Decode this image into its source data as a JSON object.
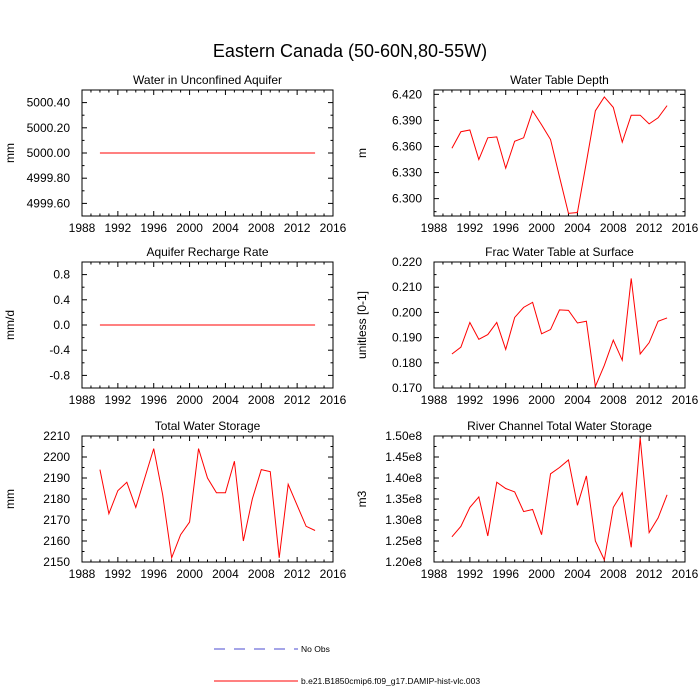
{
  "figure": {
    "title": "Eastern Canada (50-60N,80-55W)"
  },
  "legend": {
    "obs_label": "No Obs",
    "obs_color": "#4b4bd0",
    "model_label": "b.e21.B1850cmip6.f09_g17.DAMIP-hist-vlc.003",
    "model_color": "#ff0000"
  },
  "chart_data": [
    {
      "type": "line",
      "title": "Water in Unconfined Aquifer",
      "ylabel": "mm",
      "xlim": [
        1988,
        2016
      ],
      "ylim": [
        4999.5,
        5000.5
      ],
      "xticks": [
        1988,
        1992,
        1996,
        2000,
        2004,
        2008,
        2012,
        2016
      ],
      "yticks": [
        4999.6,
        4999.8,
        5000.0,
        5000.2,
        5000.4
      ],
      "ytick_labels": [
        "4999.60",
        "4999.80",
        "5000.00",
        "5000.20",
        "5000.40"
      ],
      "series": [
        {
          "color": "#ff0000",
          "x": [
            1990,
            1991,
            1992,
            1993,
            1994,
            1995,
            1996,
            1997,
            1998,
            1999,
            2000,
            2001,
            2002,
            2003,
            2004,
            2005,
            2006,
            2007,
            2008,
            2009,
            2010,
            2011,
            2012,
            2013,
            2014
          ],
          "y": [
            5000,
            5000,
            5000,
            5000,
            5000,
            5000,
            5000,
            5000,
            5000,
            5000,
            5000,
            5000,
            5000,
            5000,
            5000,
            5000,
            5000,
            5000,
            5000,
            5000,
            5000,
            5000,
            5000,
            5000,
            5000
          ]
        }
      ]
    },
    {
      "type": "line",
      "title": "Water Table Depth",
      "ylabel": "m",
      "xlim": [
        1988,
        2016
      ],
      "ylim": [
        6.28,
        6.425
      ],
      "xticks": [
        1988,
        1992,
        1996,
        2000,
        2004,
        2008,
        2012,
        2016
      ],
      "yticks": [
        6.3,
        6.33,
        6.36,
        6.39,
        6.42
      ],
      "ytick_labels": [
        "6.300",
        "6.330",
        "6.360",
        "6.390",
        "6.420"
      ],
      "series": [
        {
          "color": "#ff0000",
          "x": [
            1990,
            1991,
            1992,
            1993,
            1994,
            1995,
            1996,
            1997,
            1998,
            1999,
            2000,
            2001,
            2002,
            2003,
            2004,
            2005,
            2006,
            2007,
            2008,
            2009,
            2010,
            2011,
            2012,
            2013,
            2014
          ],
          "y": [
            6.358,
            6.377,
            6.379,
            6.345,
            6.37,
            6.371,
            6.335,
            6.366,
            6.37,
            6.401,
            6.385,
            6.368,
            6.325,
            6.283,
            6.284,
            6.342,
            6.401,
            6.417,
            6.405,
            6.365,
            6.396,
            6.396,
            6.386,
            6.393,
            6.407
          ]
        }
      ]
    },
    {
      "type": "line",
      "title": "Aquifer Recharge Rate",
      "ylabel": "mm/d",
      "xlim": [
        1988,
        2016
      ],
      "ylim": [
        -1.0,
        1.0
      ],
      "xticks": [
        1988,
        1992,
        1996,
        2000,
        2004,
        2008,
        2012,
        2016
      ],
      "yticks": [
        -0.8,
        -0.4,
        0.0,
        0.4,
        0.8
      ],
      "ytick_labels": [
        "-0.8",
        "-0.4",
        "0.0",
        "0.4",
        "0.8"
      ],
      "series": [
        {
          "color": "#ff0000",
          "x": [
            1990,
            1991,
            1992,
            1993,
            1994,
            1995,
            1996,
            1997,
            1998,
            1999,
            2000,
            2001,
            2002,
            2003,
            2004,
            2005,
            2006,
            2007,
            2008,
            2009,
            2010,
            2011,
            2012,
            2013,
            2014
          ],
          "y": [
            0,
            0,
            0,
            0,
            0,
            0,
            0,
            0,
            0,
            0,
            0,
            0,
            0,
            0,
            0,
            0,
            0,
            0,
            0,
            0,
            0,
            0,
            0,
            0,
            0
          ]
        }
      ]
    },
    {
      "type": "line",
      "title": "Frac Water Table at Surface",
      "ylabel": "unitless [0-1]",
      "xlim": [
        1988,
        2016
      ],
      "ylim": [
        0.17,
        0.22
      ],
      "xticks": [
        1988,
        1992,
        1996,
        2000,
        2004,
        2008,
        2012,
        2016
      ],
      "yticks": [
        0.17,
        0.18,
        0.19,
        0.2,
        0.21,
        0.22
      ],
      "ytick_labels": [
        "0.170",
        "0.180",
        "0.190",
        "0.200",
        "0.210",
        "0.220"
      ],
      "series": [
        {
          "color": "#ff0000",
          "x": [
            1990,
            1991,
            1992,
            1993,
            1994,
            1995,
            1996,
            1997,
            1998,
            1999,
            2000,
            2001,
            2002,
            2003,
            2004,
            2005,
            2006,
            2007,
            2008,
            2009,
            2010,
            2011,
            2012,
            2013,
            2014
          ],
          "y": [
            0.1835,
            0.1862,
            0.196,
            0.1893,
            0.1912,
            0.196,
            0.1853,
            0.198,
            0.202,
            0.204,
            0.1915,
            0.1932,
            0.201,
            0.2008,
            0.1958,
            0.1965,
            0.1706,
            0.179,
            0.189,
            0.181,
            0.2135,
            0.1835,
            0.188,
            0.1965,
            0.1978
          ]
        }
      ]
    },
    {
      "type": "line",
      "title": "Total Water Storage",
      "ylabel": "mm",
      "xlim": [
        1988,
        2016
      ],
      "ylim": [
        2150,
        2210
      ],
      "xticks": [
        1988,
        1992,
        1996,
        2000,
        2004,
        2008,
        2012,
        2016
      ],
      "yticks": [
        2150,
        2160,
        2170,
        2180,
        2190,
        2200,
        2210
      ],
      "ytick_labels": [
        "2150",
        "2160",
        "2170",
        "2180",
        "2190",
        "2200",
        "2210"
      ],
      "series": [
        {
          "color": "#ff0000",
          "x": [
            1990,
            1991,
            1992,
            1993,
            1994,
            1995,
            1996,
            1997,
            1998,
            1999,
            2000,
            2001,
            2002,
            2003,
            2004,
            2005,
            2006,
            2007,
            2008,
            2009,
            2010,
            2011,
            2012,
            2013,
            2014
          ],
          "y": [
            2194,
            2173,
            2184,
            2188,
            2176,
            2190,
            2204,
            2182,
            2152,
            2163,
            2169,
            2204,
            2190,
            2183,
            2183,
            2198,
            2160,
            2180,
            2194,
            2193,
            2152,
            2187,
            2177,
            2167,
            2165
          ]
        }
      ]
    },
    {
      "type": "line",
      "title": "River Channel Total Water Storage",
      "ylabel": "m3",
      "xlim": [
        1988,
        2016
      ],
      "ylim": [
        120000000.0,
        150000000.0
      ],
      "xticks": [
        1988,
        1992,
        1996,
        2000,
        2004,
        2008,
        2012,
        2016
      ],
      "yticks": [
        120000000.0,
        125000000.0,
        130000000.0,
        135000000.0,
        140000000.0,
        145000000.0,
        150000000.0
      ],
      "ytick_labels": [
        "1.20e8",
        "1.25e8",
        "1.30e8",
        "1.35e8",
        "1.40e8",
        "1.45e8",
        "1.50e8"
      ],
      "series": [
        {
          "color": "#ff0000",
          "x": [
            1990,
            1991,
            1992,
            1993,
            1994,
            1995,
            1996,
            1997,
            1998,
            1999,
            2000,
            2001,
            2002,
            2003,
            2004,
            2005,
            2006,
            2007,
            2008,
            2009,
            2010,
            2011,
            2012,
            2013,
            2014
          ],
          "y": [
            126000000.0,
            128500000.0,
            133000000.0,
            135500000.0,
            126200000.0,
            139000000.0,
            137500000.0,
            136700000.0,
            132000000.0,
            132500000.0,
            126500000.0,
            141000000.0,
            142500000.0,
            144300000.0,
            133500000.0,
            140500000.0,
            125000000.0,
            120500000.0,
            133000000.0,
            136500000.0,
            123500000.0,
            149500000.0,
            127000000.0,
            130500000.0,
            136000000.0
          ]
        }
      ]
    }
  ]
}
